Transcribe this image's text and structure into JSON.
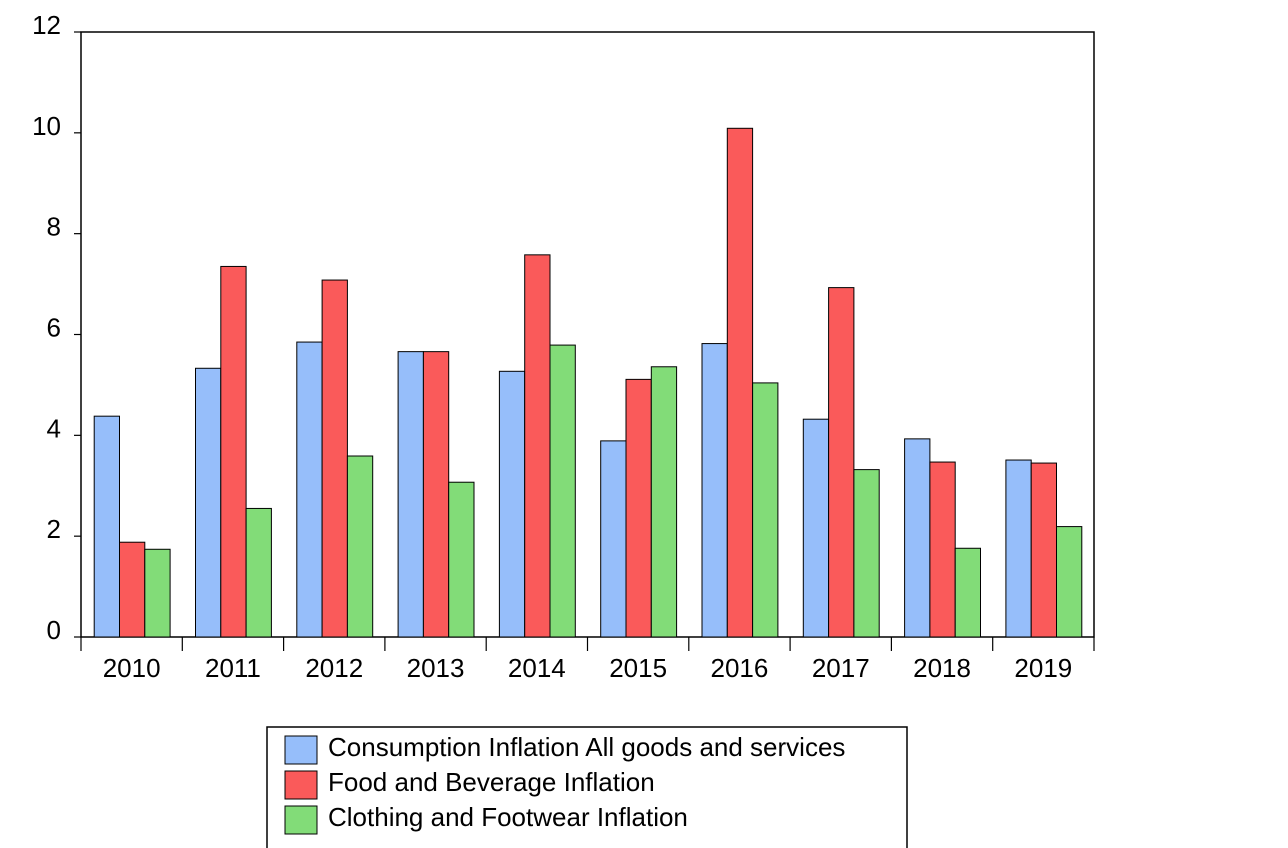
{
  "chart_data": {
    "type": "bar",
    "title": "",
    "xlabel": "",
    "ylabel": "",
    "ylim": [
      0,
      12
    ],
    "yticks": [
      0,
      2,
      4,
      6,
      8,
      10,
      12
    ],
    "categories": [
      "2010",
      "2011",
      "2012",
      "2013",
      "2014",
      "2015",
      "2016",
      "2017",
      "2018",
      "2019"
    ],
    "series": [
      {
        "name": "Consumption Inflation All goods and services",
        "color": "#96BEFA",
        "values": [
          4.38,
          5.33,
          5.85,
          5.66,
          5.27,
          3.89,
          5.82,
          4.32,
          3.93,
          3.51
        ]
      },
      {
        "name": "Food and Beverage Inflation",
        "color": "#FA5A5A",
        "values": [
          1.88,
          7.35,
          7.08,
          5.66,
          7.58,
          5.11,
          10.09,
          6.93,
          3.47,
          3.45
        ]
      },
      {
        "name": "Clothing and Footwear Inflation",
        "color": "#82DC78",
        "values": [
          1.74,
          2.55,
          3.59,
          3.07,
          5.79,
          5.36,
          5.04,
          3.32,
          1.76,
          2.19
        ]
      }
    ],
    "grid": false,
    "legend_position": "bottom-center"
  }
}
